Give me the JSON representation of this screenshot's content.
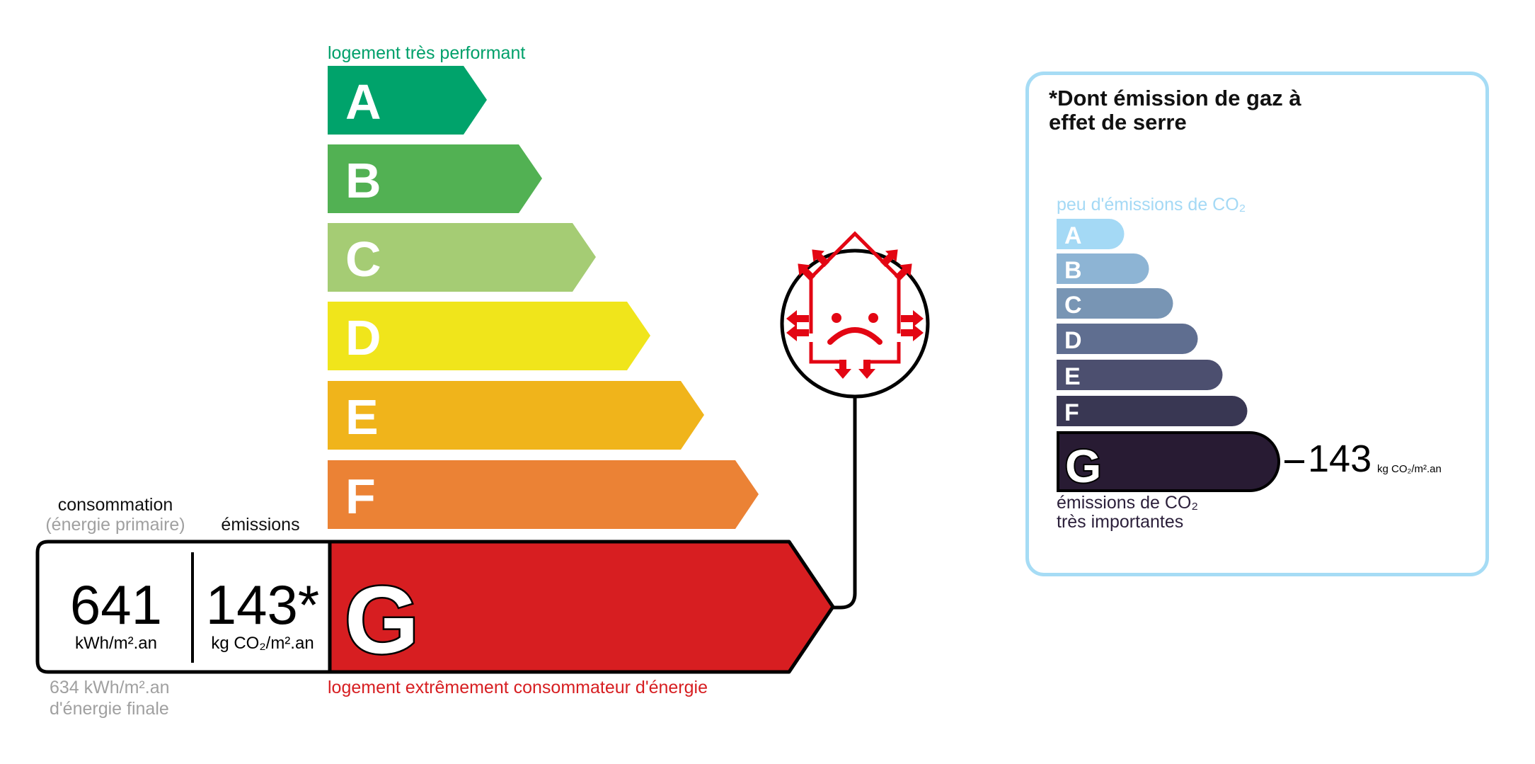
{
  "energy": {
    "top_label": "logement très performant",
    "bottom_label": "logement extrêmement consommateur d'énergie",
    "classes": [
      {
        "letter": "A",
        "color": "#00a36b"
      },
      {
        "letter": "B",
        "color": "#52b153"
      },
      {
        "letter": "C",
        "color": "#a5cc74"
      },
      {
        "letter": "D",
        "color": "#f0e51b"
      },
      {
        "letter": "E",
        "color": "#f0b41b"
      },
      {
        "letter": "F",
        "color": "#eb8235"
      },
      {
        "letter": "G",
        "color": "#d71e21"
      }
    ],
    "current_class": "G",
    "consumption_heading": "consommation",
    "consumption_subheading": "(énergie primaire)",
    "emissions_heading": "émissions",
    "consumption_value": "641",
    "consumption_unit": "kWh/m².an",
    "emissions_value": "143*",
    "emissions_unit": "kg CO₂/m².an",
    "final_energy_line1": "634 kWh/m².an",
    "final_energy_line2": "d'énergie finale",
    "icon": "sad-house-heat-loss-icon"
  },
  "ghg": {
    "title": "*Dont émission de gaz à effet de serre",
    "top_label": "peu d'émissions de CO₂",
    "bottom_label_line1": "émissions de CO₂",
    "bottom_label_line2": "très importantes",
    "classes": [
      {
        "letter": "A",
        "color": "#a4d9f5"
      },
      {
        "letter": "B",
        "color": "#8db4d4"
      },
      {
        "letter": "C",
        "color": "#7895b4"
      },
      {
        "letter": "D",
        "color": "#5f6e90"
      },
      {
        "letter": "E",
        "color": "#4c4f6f"
      },
      {
        "letter": "F",
        "color": "#393753"
      },
      {
        "letter": "G",
        "color": "#281b33"
      }
    ],
    "current_class": "G",
    "value": "143",
    "unit": "kg CO₂/m².an"
  }
}
